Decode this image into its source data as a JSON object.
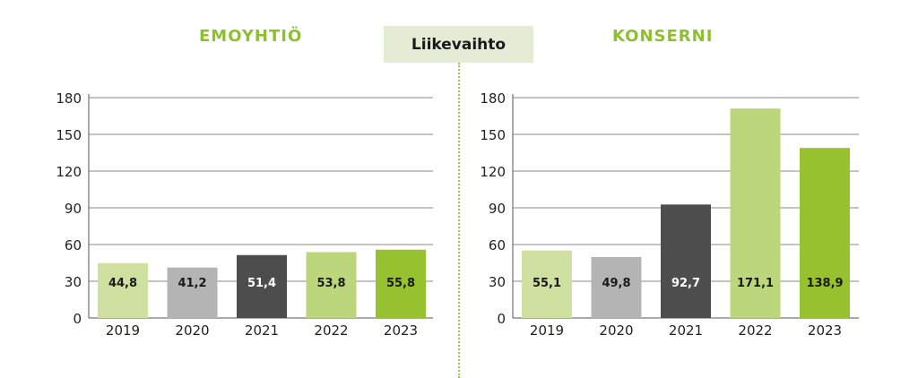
{
  "header": {
    "center_label": "Liikevaihto"
  },
  "chart_data": [
    {
      "type": "bar",
      "title": "EMOYHTIÖ",
      "categories": [
        "2019",
        "2020",
        "2021",
        "2022",
        "2023"
      ],
      "values": [
        44.8,
        41.2,
        51.4,
        53.8,
        55.8
      ],
      "value_labels": [
        "44,8",
        "41,2",
        "51,4",
        "53,8",
        "55,8"
      ],
      "bar_colors": [
        "#cfe0a0",
        "#b4b4b4",
        "#4d4d4d",
        "#bcd67b",
        "#97c12e"
      ],
      "label_colors": [
        "#1a1a1a",
        "#1a1a1a",
        "#ffffff",
        "#1a1a1a",
        "#1a1a1a"
      ],
      "yticks": [
        "0",
        "30",
        "60",
        "90",
        "120",
        "150",
        "180"
      ],
      "ylim": [
        0,
        180
      ],
      "grid": true
    },
    {
      "type": "bar",
      "title": "KONSERNI",
      "categories": [
        "2019",
        "2020",
        "2021",
        "2022",
        "2023"
      ],
      "values": [
        55.1,
        49.8,
        92.7,
        171.1,
        138.9
      ],
      "value_labels": [
        "55,1",
        "49,8",
        "92,7",
        "171,1",
        "138,9"
      ],
      "bar_colors": [
        "#cfe0a0",
        "#b4b4b4",
        "#4d4d4d",
        "#bcd67b",
        "#97c12e"
      ],
      "label_colors": [
        "#1a1a1a",
        "#1a1a1a",
        "#ffffff",
        "#1a1a1a",
        "#1a1a1a"
      ],
      "yticks": [
        "0",
        "30",
        "60",
        "90",
        "120",
        "150",
        "180"
      ],
      "ylim": [
        0,
        180
      ],
      "grid": true
    }
  ]
}
